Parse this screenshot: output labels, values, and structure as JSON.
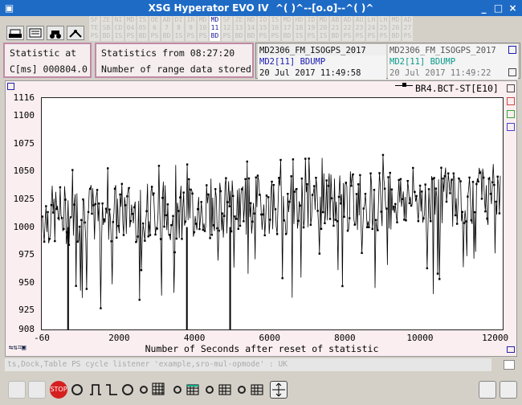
{
  "window": {
    "title": "XSG Hyperator EVO IV  ^( )^--[o.o]--^( )^"
  },
  "menu_cells": [
    {
      "l1": "SF",
      "l2": "TE",
      "l3": "PS",
      "active": false
    },
    {
      "l1": "ZE",
      "l2": "SB",
      "l3": "BD",
      "active": false
    },
    {
      "l1": "NI",
      "l2": "CD",
      "l3": "IS",
      "active": false
    },
    {
      "l1": "MD",
      "l2": "04",
      "l3": "PS",
      "active": false
    },
    {
      "l1": "IS",
      "l2": "05",
      "l3": "BD",
      "active": false
    },
    {
      "l1": "OE",
      "l2": "6",
      "l3": "PS",
      "active": false
    },
    {
      "l1": "AB",
      "l2": "7",
      "l3": "BD",
      "active": false
    },
    {
      "l1": "DI",
      "l2": "8",
      "l3": "IS",
      "active": false
    },
    {
      "l1": "IR",
      "l2": "9",
      "l3": "PS",
      "active": false
    },
    {
      "l1": "MD",
      "l2": "10",
      "l3": "PS",
      "active": false
    },
    {
      "l1": "MD",
      "l2": "11",
      "l3": "BD",
      "active": true
    },
    {
      "l1": "SF",
      "l2": "12",
      "l3": "PS",
      "active": false
    },
    {
      "l1": "ZE",
      "l2": "13",
      "l3": "BD",
      "active": false
    },
    {
      "l1": "ND",
      "l2": "14",
      "l3": "BD",
      "active": false
    },
    {
      "l1": "IO",
      "l2": "15",
      "l3": "PS",
      "active": false
    },
    {
      "l1": "IS",
      "l2": "16",
      "l3": "PS",
      "active": false
    },
    {
      "l1": "MD",
      "l2": "17",
      "l3": "BD",
      "active": false
    },
    {
      "l1": "HD",
      "l2": "18",
      "l3": "IS",
      "active": false
    },
    {
      "l1": "ID",
      "l2": "19",
      "l3": "PS",
      "active": false
    },
    {
      "l1": "MD",
      "l2": "20",
      "l3": "IS",
      "active": false
    },
    {
      "l1": "AB",
      "l2": "21",
      "l3": "BD",
      "active": false
    },
    {
      "l1": "AD",
      "l2": "22",
      "l3": "PS",
      "active": false
    },
    {
      "l1": "AU",
      "l2": "23",
      "l3": "PS",
      "active": false
    },
    {
      "l1": "LH",
      "l2": "24",
      "l3": "PS",
      "active": false
    },
    {
      "l1": "LH",
      "l2": "25",
      "l3": "PS",
      "active": false
    },
    {
      "l1": "MD",
      "l2": "26",
      "l3": "BD",
      "active": false
    },
    {
      "l1": "AD",
      "l2": "27",
      "l3": "PS",
      "active": false
    }
  ],
  "stat": {
    "label": "Statistic at",
    "value": "C[ms] 000804.0"
  },
  "from": {
    "label": "Statistics from 08:27:20",
    "sub": "Number of range data stored"
  },
  "info_left": {
    "file": "MD2306_FM_ISOGPS_2017",
    "dump": "MD2[11] BDUMP",
    "date": "20 Jul 2017 11:49:58"
  },
  "info_right": {
    "file": "MD2306_FM_ISOGPS_2017",
    "dump": "MD2[11] BDUMP",
    "date": "20 Jul 2017 11:49:22"
  },
  "legend": {
    "series": "BR4.BCT-ST[E10]"
  },
  "axes": {
    "yticks": [
      "1116",
      "1100",
      "1075",
      "1050",
      "1025",
      "1000",
      "975",
      "950",
      "925",
      "908"
    ],
    "xticks": [
      "-60",
      "2000",
      "4000",
      "6000",
      "8000",
      "10000",
      "12000"
    ],
    "xlabel": "Number of Seconds after reset of statistic"
  },
  "cmdline": {
    "text": "ts,Dock,Table PS cycle listener 'example,sro-mul-opmode' : UK"
  },
  "chart_data": {
    "type": "line",
    "series": [
      {
        "name": "BR4.BCT-ST[E10]",
        "color": "#000000"
      }
    ],
    "xlim": [
      -60,
      12200
    ],
    "ylim": [
      908,
      1116
    ],
    "xlabel": "Number of Seconds after reset of statistic",
    "trend": {
      "start": 1010,
      "end": 1030
    },
    "noise": 25
  },
  "bottom": {
    "stop": "STOP"
  }
}
